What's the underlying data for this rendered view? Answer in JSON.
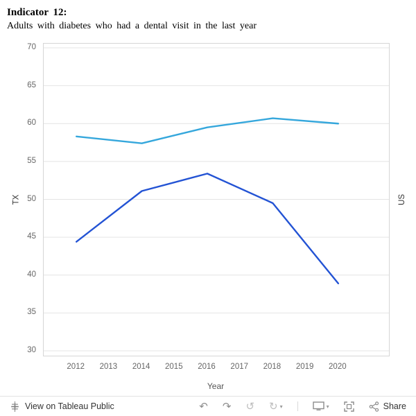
{
  "header": {
    "title": "Indicator 12:",
    "subtitle": "Adults with diabetes who had a dental visit in the last year"
  },
  "chart_data": {
    "type": "line",
    "title": "Indicator 12: Adults with diabetes who had a dental visit in the last year",
    "x": [
      2012,
      2014,
      2016,
      2018,
      2020
    ],
    "series": [
      {
        "name": "US",
        "color": "#35a7dc",
        "values": [
          58.3,
          57.4,
          59.5,
          60.7,
          60.0
        ]
      },
      {
        "name": "TX",
        "color": "#2353d4",
        "values": [
          44.4,
          51.1,
          53.4,
          49.5,
          38.9
        ]
      }
    ],
    "x_ticks": [
      "2012",
      "2013",
      "2014",
      "2015",
      "2016",
      "2017",
      "2018",
      "2019",
      "2020"
    ],
    "y_ticks": [
      30,
      35,
      40,
      45,
      50,
      55,
      60,
      65,
      70
    ],
    "xlabel": "Year",
    "left_axis_label": "TX",
    "right_axis_label": "US",
    "ylim": [
      30,
      70
    ],
    "legend": "none",
    "grid": "horizontal"
  },
  "toolbar": {
    "view_label": "View on Tableau Public",
    "share_label": "Share"
  },
  "icons": {
    "undo": "↶",
    "redo": "↷",
    "replay": "↺",
    "replay_forward": "↻",
    "caret": "▾"
  }
}
